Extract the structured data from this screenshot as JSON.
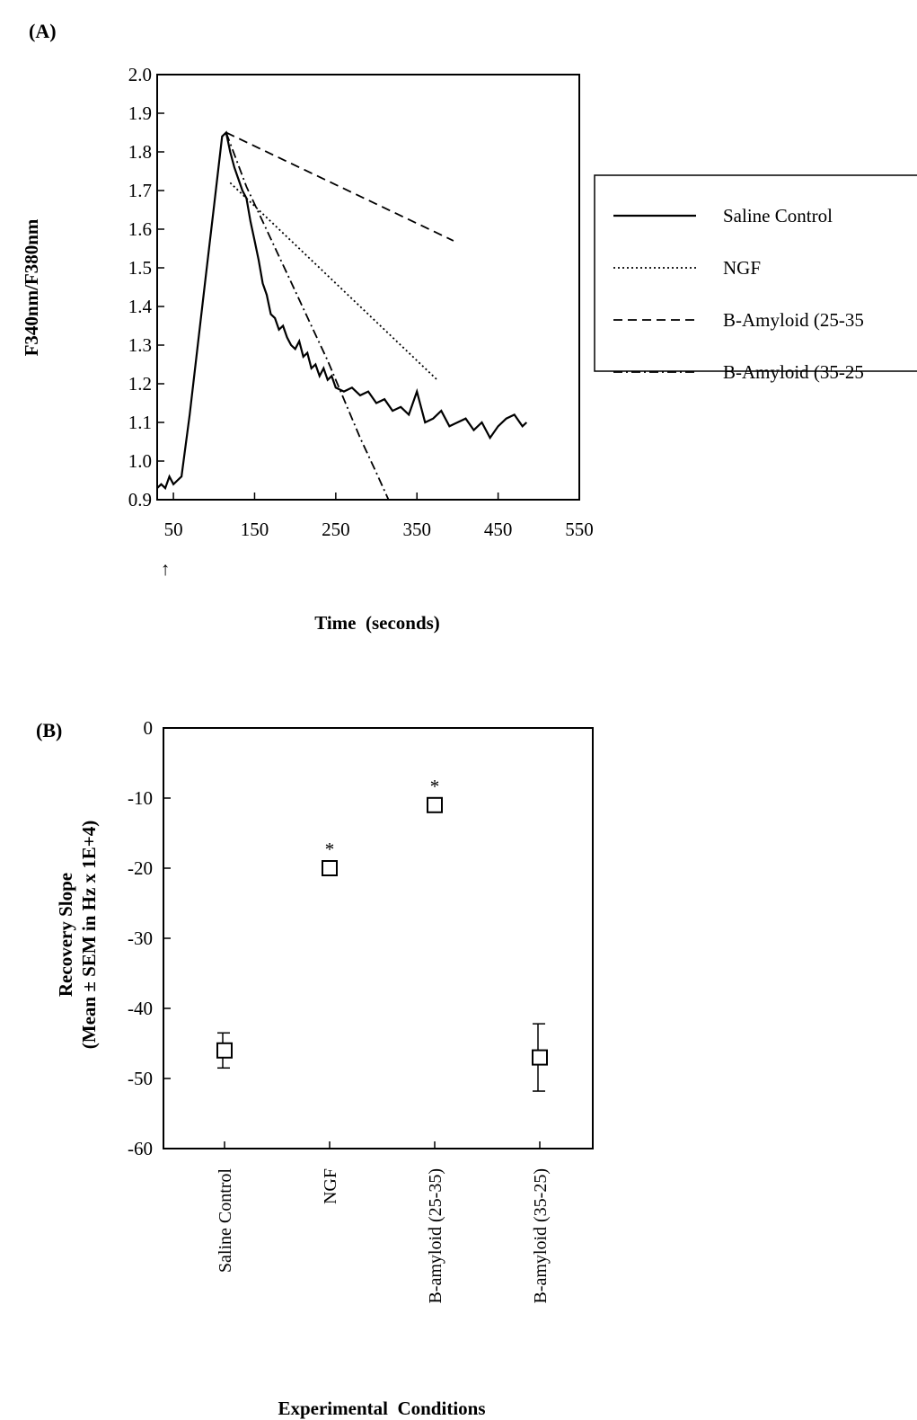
{
  "figure": {
    "panels": [
      "(A)",
      "(B)"
    ]
  },
  "chart_data": [
    {
      "type": "line",
      "panel": "(A)",
      "xlabel": "Time  (seconds)",
      "ylabel": "F340nm/F380nm",
      "xlim": [
        30,
        550
      ],
      "ylim": [
        0.9,
        2.0
      ],
      "xticks": [
        50,
        150,
        250,
        350,
        450,
        550
      ],
      "yticks": [
        0.9,
        1.0,
        1.1,
        1.2,
        1.3,
        1.4,
        1.5,
        1.6,
        1.7,
        1.8,
        1.9,
        2.0
      ],
      "xtick_labels": [
        "50",
        "150",
        "250",
        "350",
        "450",
        "550"
      ],
      "ytick_labels": [
        "0.9",
        "1.0",
        "1.1",
        "1.2",
        "1.3",
        "1.4",
        "1.5",
        "1.6",
        "1.7",
        "1.8",
        "1.9",
        "2.0"
      ],
      "arrow_marker": {
        "x": 40,
        "glyph": "↑"
      },
      "legend": "right",
      "series": [
        {
          "name": "Saline Control",
          "style": "solid",
          "x": [
            30,
            35,
            40,
            45,
            50,
            55,
            60,
            70,
            80,
            90,
            100,
            110,
            115,
            120,
            125,
            130,
            135,
            140,
            145,
            150,
            155,
            160,
            165,
            170,
            175,
            180,
            185,
            190,
            195,
            200,
            205,
            210,
            215,
            220,
            225,
            230,
            235,
            240,
            245,
            250,
            260,
            270,
            280,
            290,
            300,
            310,
            320,
            330,
            340,
            350,
            360,
            370,
            380,
            390,
            400,
            410,
            420,
            430,
            440,
            450,
            460,
            470,
            480,
            485
          ],
          "y": [
            0.93,
            0.94,
            0.93,
            0.96,
            0.94,
            0.95,
            0.96,
            1.12,
            1.3,
            1.48,
            1.66,
            1.84,
            1.85,
            1.8,
            1.76,
            1.73,
            1.7,
            1.68,
            1.62,
            1.57,
            1.52,
            1.46,
            1.43,
            1.38,
            1.37,
            1.34,
            1.35,
            1.32,
            1.3,
            1.29,
            1.31,
            1.27,
            1.28,
            1.24,
            1.25,
            1.22,
            1.24,
            1.21,
            1.22,
            1.19,
            1.18,
            1.19,
            1.17,
            1.18,
            1.15,
            1.16,
            1.13,
            1.14,
            1.12,
            1.18,
            1.1,
            1.11,
            1.13,
            1.09,
            1.1,
            1.11,
            1.08,
            1.1,
            1.06,
            1.09,
            1.11,
            1.12,
            1.09,
            1.1
          ]
        },
        {
          "name": "NGF",
          "style": "dotted",
          "x": [
            120,
            375
          ],
          "y": [
            1.72,
            1.21
          ]
        },
        {
          "name": "B-Amyloid (25-35",
          "style": "dashed",
          "x": [
            115,
            395
          ],
          "y": [
            1.85,
            1.57
          ]
        },
        {
          "name": "B-Amyloid (35-25",
          "style": "dashdot",
          "x": [
            115,
            140,
            160,
            180,
            200,
            220,
            240,
            260,
            280,
            300,
            315
          ],
          "y": [
            1.85,
            1.71,
            1.62,
            1.53,
            1.44,
            1.35,
            1.26,
            1.16,
            1.06,
            0.97,
            0.9
          ]
        }
      ]
    },
    {
      "type": "scatter",
      "panel": "(B)",
      "xlabel": "Experimental  Conditions",
      "ylabel_lines": [
        "Recovery Slope",
        "(Mean ± SEM in Hz x 1E+4)"
      ],
      "ylim": [
        -60,
        0
      ],
      "yticks": [
        0,
        -10,
        -20,
        -30,
        -40,
        -50,
        -60
      ],
      "ytick_labels": [
        "0",
        "-10",
        "-20",
        "-30",
        "-40",
        "-50",
        "-60"
      ],
      "categories": [
        "Saline Control",
        "NGF",
        "B-amyloid (25-35)",
        "B-amyloid (35-25)"
      ],
      "values": [
        -46,
        -20,
        -11,
        -47
      ],
      "errors": [
        2.5,
        0,
        0,
        4.8
      ],
      "significance": [
        "",
        "*",
        "*",
        ""
      ]
    }
  ]
}
